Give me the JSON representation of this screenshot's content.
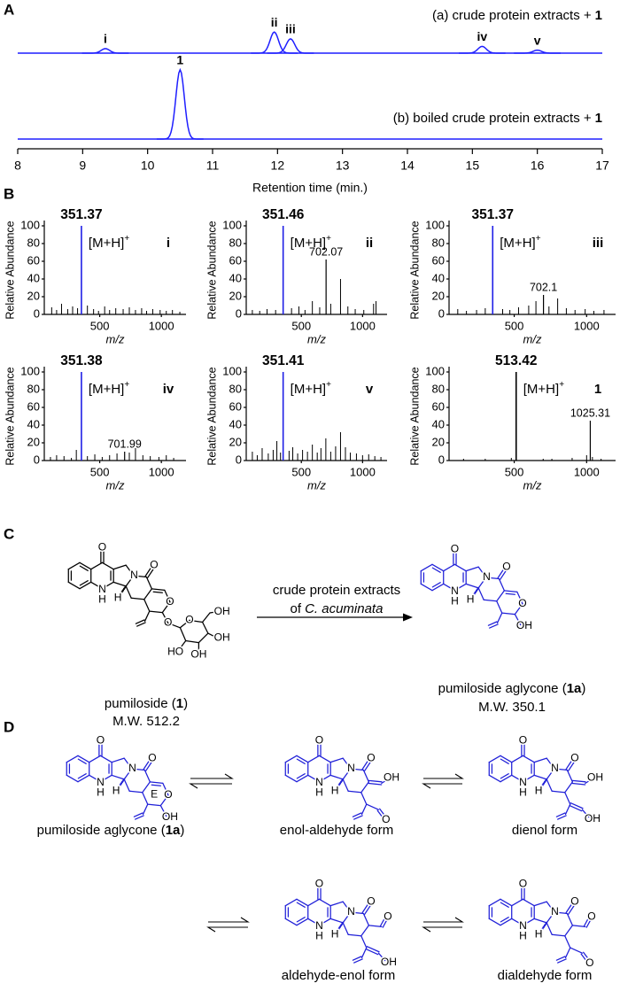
{
  "panel_labels": [
    "A",
    "B",
    "C",
    "D"
  ],
  "chart_data": [
    {
      "type": "chromatogram",
      "xlabel": "Retention time (min.)",
      "xlim": [
        8,
        17
      ],
      "xticks": [
        8,
        9,
        10,
        11,
        12,
        13,
        14,
        15,
        16,
        17
      ],
      "ylim": [
        0,
        100
      ],
      "series": [
        {
          "name": "(a) crude protein extracts +",
          "name_bold": "1",
          "color": "#1f1fff",
          "peaks": {
            "x": [
              9.35,
              11.95,
              12.2,
              15.15,
              16.0
            ],
            "values": [
              6,
              28,
              19,
              9,
              4
            ],
            "labels": [
              "i",
              "ii",
              "iii",
              "iv",
              "v"
            ]
          }
        },
        {
          "name": "(b) boiled crude protein extracts +",
          "name_bold": "1",
          "color": "#1f1fff",
          "peaks": {
            "x": [
              10.5
            ],
            "values": [
              92
            ],
            "labels": [
              "1"
            ]
          }
        }
      ]
    },
    {
      "type": "spectrum",
      "ylabel": "Relative Abundance",
      "xlabel": "m/z",
      "xlim": [
        50,
        1200
      ],
      "xticks": [
        500,
        1000
      ],
      "ylim": [
        0,
        100
      ],
      "yticks": [
        0,
        20,
        40,
        60,
        80,
        100
      ],
      "color": "#000000",
      "base_color": "#1f1fe6",
      "base_peak": {
        "mz": 351.37,
        "value": 100
      },
      "labeled_peaks": [],
      "mz": [
        110,
        150,
        190,
        240,
        280,
        320,
        400,
        450,
        490,
        540,
        580,
        630,
        690,
        740,
        790,
        840,
        880,
        930,
        990,
        1040,
        1090,
        1150
      ],
      "values": [
        8,
        5,
        12,
        6,
        9,
        7,
        10,
        6,
        4,
        9,
        5,
        7,
        6,
        8,
        5,
        7,
        4,
        6,
        5,
        4,
        5,
        3
      ],
      "annotation": "[M+H]",
      "annotation_sup": "+",
      "compound": "i"
    },
    {
      "type": "spectrum",
      "ylabel": "Relative Abundance",
      "xlabel": "m/z",
      "xlim": [
        50,
        1200
      ],
      "xticks": [
        500,
        1000
      ],
      "ylim": [
        0,
        100
      ],
      "yticks": [
        0,
        20,
        40,
        60,
        80,
        100
      ],
      "color": "#000000",
      "base_color": "#1f1fe6",
      "base_peak": {
        "mz": 351.46,
        "value": 100
      },
      "labeled_peaks": [
        {
          "mz": 702.07,
          "value": 62
        }
      ],
      "mz": [
        100,
        160,
        220,
        290,
        420,
        480,
        530,
        590,
        650,
        740,
        820,
        880,
        940,
        1010,
        1090,
        1110
      ],
      "values": [
        5,
        4,
        6,
        5,
        7,
        9,
        5,
        15,
        8,
        12,
        40,
        9,
        6,
        5,
        12,
        15
      ],
      "annotation": "[M+H]",
      "annotation_sup": "+",
      "compound": "ii"
    },
    {
      "type": "spectrum",
      "ylabel": "Relative Abundance",
      "xlabel": "m/z",
      "xlim": [
        50,
        1200
      ],
      "xticks": [
        500,
        1000
      ],
      "ylim": [
        0,
        100
      ],
      "yticks": [
        0,
        20,
        40,
        60,
        80,
        100
      ],
      "color": "#000000",
      "base_color": "#1f1fe6",
      "base_peak": {
        "mz": 351.37,
        "value": 100
      },
      "labeled_peaks": [
        {
          "mz": 702.1,
          "value": 22
        }
      ],
      "mz": [
        110,
        170,
        240,
        300,
        420,
        470,
        530,
        600,
        650,
        740,
        800,
        860,
        920,
        990,
        1050,
        1120
      ],
      "values": [
        6,
        4,
        5,
        7,
        6,
        5,
        8,
        10,
        15,
        9,
        18,
        7,
        5,
        6,
        4,
        5
      ],
      "annotation": "[M+H]",
      "annotation_sup": "+",
      "compound": "iii"
    },
    {
      "type": "spectrum",
      "ylabel": "Relative Abundance",
      "xlabel": "m/z",
      "xlim": [
        50,
        1200
      ],
      "xticks": [
        500,
        1000
      ],
      "ylim": [
        0,
        100
      ],
      "yticks": [
        0,
        20,
        40,
        60,
        80,
        100
      ],
      "color": "#000000",
      "base_color": "#1f1fe6",
      "base_peak": {
        "mz": 351.38,
        "value": 100
      },
      "labeled_peaks": [
        {
          "mz": 701.99,
          "value": 10
        }
      ],
      "mz": [
        100,
        150,
        210,
        270,
        310,
        400,
        460,
        520,
        580,
        640,
        740,
        790,
        850,
        910,
        980,
        1040,
        1100
      ],
      "values": [
        4,
        6,
        5,
        3,
        12,
        5,
        7,
        4,
        6,
        8,
        9,
        14,
        6,
        5,
        4,
        6,
        3
      ],
      "annotation": "[M+H]",
      "annotation_sup": "+",
      "compound": "iv"
    },
    {
      "type": "spectrum",
      "ylabel": "Relative Abundance",
      "xlabel": "m/z",
      "xlim": [
        50,
        1200
      ],
      "xticks": [
        500,
        1000
      ],
      "ylim": [
        0,
        100
      ],
      "yticks": [
        0,
        20,
        40,
        60,
        80,
        100
      ],
      "color": "#000000",
      "base_color": "#1f1fe6",
      "base_peak": {
        "mz": 351.41,
        "value": 100
      },
      "labeled_peaks": [],
      "mz": [
        100,
        140,
        180,
        230,
        270,
        300,
        330,
        400,
        430,
        470,
        510,
        550,
        590,
        630,
        660,
        700,
        740,
        780,
        820,
        860,
        900,
        950,
        1000,
        1050,
        1100,
        1150
      ],
      "values": [
        10,
        6,
        14,
        8,
        12,
        22,
        9,
        11,
        15,
        8,
        12,
        10,
        18,
        9,
        14,
        25,
        10,
        16,
        32,
        15,
        9,
        8,
        6,
        7,
        5,
        4
      ],
      "annotation": "[M+H]",
      "annotation_sup": "+",
      "compound": "v"
    },
    {
      "type": "spectrum",
      "ylabel": "Relative Abundance",
      "xlabel": "m/z",
      "xlim": [
        50,
        1200
      ],
      "xticks": [
        500,
        1000
      ],
      "ylim": [
        0,
        100
      ],
      "yticks": [
        0,
        20,
        40,
        60,
        80,
        100
      ],
      "color": "#000000",
      "base_color": "#000000",
      "base_peak": {
        "mz": 513.42,
        "value": 100
      },
      "labeled_peaks": [
        {
          "mz": 1025.31,
          "value": 45
        }
      ],
      "mz": [
        150,
        300,
        480,
        700,
        760,
        900,
        1000,
        1040,
        1100
      ],
      "values": [
        2,
        2,
        3,
        2,
        2,
        3,
        6,
        4,
        2
      ],
      "annotation": "[M+H]",
      "annotation_sup": "+",
      "compound": "1"
    }
  ],
  "scheme": {
    "reagent": "crude protein extracts",
    "source_prefix": "of",
    "source_italic": "C. acuminata",
    "structures": [
      {
        "name": [
          "pumiloside (",
          "1",
          ")"
        ],
        "mw": "M.W. 512.2",
        "atoms": [
          "O",
          "N",
          "H",
          "N",
          "O",
          "H",
          "O",
          "O",
          "O",
          "OH",
          "OH",
          "OH",
          "HO"
        ]
      },
      {
        "name": [
          "pumiloside aglycone (",
          "1a",
          ")"
        ],
        "mw": "M.W. 350.1",
        "atoms": [
          "O",
          "N",
          "H",
          "N",
          "O",
          "H",
          "O",
          "OH"
        ]
      },
      {
        "name": [
          "pumiloside aglycone (",
          "1a",
          ")"
        ],
        "atoms": [
          "O",
          "N",
          "H",
          "N",
          "O",
          "H",
          "O",
          "OH",
          "E"
        ]
      },
      {
        "name": [
          "enol-aldehyde form"
        ],
        "atoms": [
          "O",
          "N",
          "H",
          "N",
          "O",
          "H",
          "OH",
          "O"
        ]
      },
      {
        "name": [
          "dienol form"
        ],
        "atoms": [
          "O",
          "N",
          "H",
          "N",
          "O",
          "H",
          "OH",
          "OH"
        ]
      },
      {
        "name": [
          "aldehyde-enol form"
        ],
        "atoms": [
          "O",
          "N",
          "H",
          "N",
          "O",
          "H",
          "O",
          "OH"
        ]
      },
      {
        "name": [
          "dialdehyde form"
        ],
        "atoms": [
          "O",
          "N",
          "H",
          "N",
          "O",
          "H",
          "O",
          "O"
        ]
      }
    ]
  }
}
